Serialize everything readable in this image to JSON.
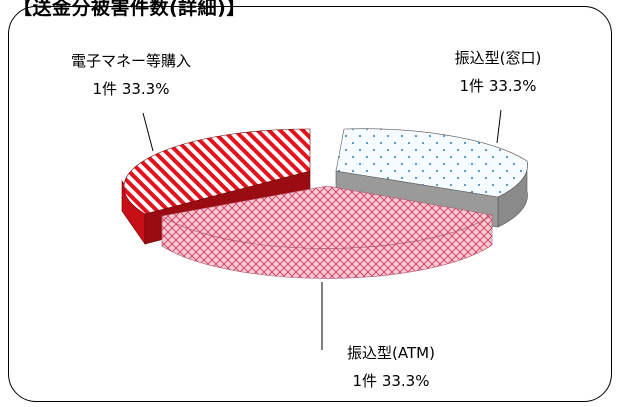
{
  "title": "【送金分被害件数(詳細)】",
  "chart_data": {
    "type": "pie",
    "three_d": true,
    "exploded": true,
    "categories": [
      "振込型(窓口)",
      "振込型(ATM)",
      "電子マネー等購入"
    ],
    "values": [
      1,
      1,
      1
    ],
    "count_labels": [
      "1件",
      "1件",
      "1件"
    ],
    "percent_labels": [
      "33.3%",
      "33.3%",
      "33.3%"
    ],
    "colors": {
      "window_fill": "#f5fbff",
      "window_dot": "#2a7ab8",
      "atm_fill": "#f4c9d3",
      "atm_pattern": "#d23355",
      "emoney_fill": "#ffffff",
      "emoney_stripe": "#e3121c",
      "side_grey": "#8a8a8a"
    }
  }
}
